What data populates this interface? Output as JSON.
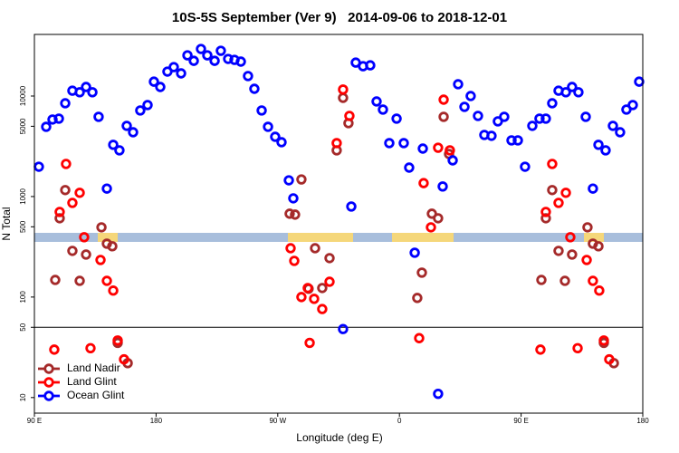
{
  "chart_data": {
    "type": "scatter",
    "title": "10S-5S September (Ver 9)   2014-09-06 to 2018-12-01",
    "xlabel": "Longitude (deg E)",
    "ylabel": "N Total",
    "xlim": [
      90,
      540
    ],
    "xticks": [
      {
        "value": 90,
        "label": "90 E"
      },
      180,
      {
        "value": 270,
        "label": "90 W"
      },
      {
        "value": 360,
        "label": "0"
      },
      {
        "value": 450,
        "label": "90 E"
      },
      {
        "value": 540,
        "label": "180"
      }
    ],
    "ylim": [
      7,
      41000
    ],
    "yticks": [
      10,
      50,
      100,
      500,
      1000,
      5000,
      10000
    ],
    "yscale": "log",
    "hline": 50,
    "legend": "lower left",
    "series": [
      {
        "name": "Land Nadir",
        "color": "#a52a2a",
        "x": [
          105.4,
          108.7,
          112.8,
          118.1,
          123.5,
          128.2,
          139.6,
          143.6,
          147.6,
          151.6,
          159.0,
          278.8,
          282.8,
          287.5,
          292.8,
          297.6,
          302.9,
          308.3,
          313.6,
          318.3,
          322.3,
          373.2,
          376.6,
          384.0,
          388.6,
          392.7,
          396.7,
          465.0,
          468.3,
          473.0,
          477.7,
          482.4,
          487.7,
          499.1,
          503.1,
          507.2,
          511.2,
          518.6
        ],
        "values": [
          148,
          608,
          1160,
          288,
          145,
          265,
          494,
          340,
          320,
          35,
          22,
          675,
          661,
          1480,
          121,
          306,
          123,
          244,
          2880,
          9590,
          5370,
          98,
          175,
          675,
          608,
          6210,
          2650,
          148,
          608,
          1160,
          288,
          145,
          265,
          494,
          340,
          320,
          35,
          22
        ]
      },
      {
        "name": "Land Glint",
        "color": "#ff0000",
        "x": [
          104.7,
          108.7,
          113.4,
          118.1,
          123.5,
          126.8,
          131.5,
          138.9,
          143.6,
          148.3,
          151.6,
          156.3,
          279.5,
          282.2,
          287.5,
          292.2,
          296.9,
          302.9,
          308.3,
          293.6,
          313.6,
          318.3,
          323.0,
          374.6,
          377.9,
          383.3,
          388.6,
          392.7,
          397.3,
          464.3,
          468.3,
          473.0,
          477.7,
          483.1,
          486.4,
          491.8,
          498.5,
          503.1,
          507.8,
          511.2,
          515.2
        ],
        "values": [
          30,
          703,
          2110,
          865,
          1090,
          394,
          31,
          234,
          145,
          116,
          37,
          24,
          306,
          229,
          100,
          123,
          96,
          76,
          142,
          35,
          3400,
          11600,
          6340,
          39,
          1360,
          494,
          3060,
          9200,
          2880,
          30,
          703,
          2110,
          865,
          1090,
          394,
          31,
          234,
          145,
          116,
          37,
          24
        ]
      },
      {
        "name": "Ocean Glint",
        "color": "#0000ff",
        "x": [
          93.3,
          98.7,
          103.4,
          108.1,
          112.8,
          118.1,
          123.5,
          128.2,
          132.9,
          137.5,
          143.6,
          148.3,
          152.9,
          158.3,
          163.0,
          168.3,
          173.7,
          178.4,
          183.1,
          188.4,
          193.1,
          198.5,
          203.2,
          207.9,
          213.2,
          217.9,
          223.3,
          227.9,
          233.3,
          238.0,
          242.7,
          248.0,
          252.7,
          258.1,
          262.8,
          268.1,
          272.8,
          278.2,
          281.5,
          318.3,
          324.4,
          327.7,
          333.1,
          338.4,
          343.1,
          347.8,
          352.5,
          357.9,
          363.2,
          367.2,
          371.3,
          377.3,
          388.6,
          392.0,
          399.4,
          403.4,
          408.1,
          412.7,
          418.1,
          422.8,
          428.1,
          432.8,
          437.5,
          442.9,
          447.6,
          452.9,
          458.3,
          463.6,
          468.3,
          473.0,
          477.7,
          483.1,
          487.7,
          492.4,
          497.8,
          503.1,
          507.2,
          512.5,
          517.9,
          523.2,
          527.9,
          532.6,
          537.3
        ],
        "values": [
          1980,
          4940,
          5840,
          5960,
          8470,
          11300,
          10900,
          12300,
          10900,
          6210,
          1200,
          3270,
          2880,
          5050,
          4360,
          7180,
          8130,
          13900,
          12300,
          17500,
          19400,
          16800,
          25400,
          22400,
          29400,
          25400,
          22400,
          28200,
          23400,
          22900,
          22000,
          15800,
          11800,
          7180,
          4940,
          3930,
          3470,
          1450,
          960,
          48,
          796,
          21500,
          19800,
          20200,
          8830,
          7330,
          3400,
          5960,
          3400,
          1940,
          276,
          3000,
          10.9,
          1260,
          2290,
          13100,
          7800,
          10000,
          6340,
          4100,
          4020,
          5600,
          6210,
          3620,
          3620,
          1980,
          5050,
          5960,
          5960,
          8470,
          11300,
          10900,
          12300,
          10900,
          6210,
          1200,
          3270,
          2880,
          5050,
          4360,
          7330,
          8130,
          13900
        ]
      }
    ]
  }
}
